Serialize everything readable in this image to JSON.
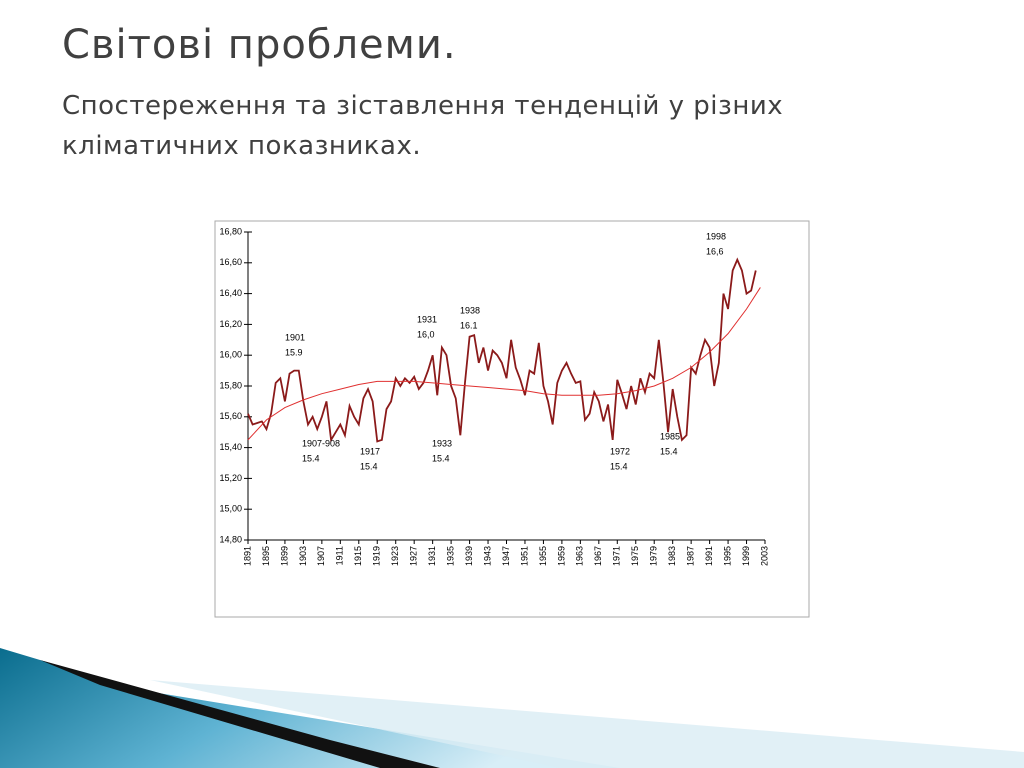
{
  "slide": {
    "title": "Світові проблеми.",
    "subtitle": "Спостереження та зіставлення тенденцій у різних кліматичних показниках."
  },
  "chart_data": {
    "type": "line",
    "x": [
      1891,
      1892,
      1893,
      1894,
      1895,
      1896,
      1897,
      1898,
      1899,
      1900,
      1901,
      1902,
      1903,
      1904,
      1905,
      1906,
      1907,
      1908,
      1909,
      1910,
      1911,
      1912,
      1913,
      1914,
      1915,
      1916,
      1917,
      1918,
      1919,
      1920,
      1921,
      1922,
      1923,
      1924,
      1925,
      1926,
      1927,
      1928,
      1929,
      1930,
      1931,
      1932,
      1933,
      1934,
      1935,
      1936,
      1937,
      1938,
      1939,
      1940,
      1941,
      1942,
      1943,
      1944,
      1945,
      1946,
      1947,
      1948,
      1949,
      1950,
      1951,
      1952,
      1953,
      1954,
      1955,
      1956,
      1957,
      1958,
      1959,
      1960,
      1961,
      1962,
      1963,
      1964,
      1965,
      1966,
      1967,
      1968,
      1969,
      1970,
      1971,
      1972,
      1973,
      1974,
      1975,
      1976,
      1977,
      1978,
      1979,
      1980,
      1981,
      1982,
      1983,
      1984,
      1985,
      1986,
      1987,
      1988,
      1989,
      1990,
      1991,
      1992,
      1993,
      1994,
      1995,
      1996,
      1997,
      1998,
      1999,
      2000,
      2001
    ],
    "series": [
      {
        "color": "#8b1a1a",
        "values": [
          15.62,
          15.55,
          15.56,
          15.57,
          15.52,
          15.62,
          15.82,
          15.85,
          15.7,
          15.88,
          15.9,
          15.9,
          15.7,
          15.55,
          15.6,
          15.52,
          15.6,
          15.7,
          15.45,
          15.5,
          15.55,
          15.48,
          15.67,
          15.6,
          15.55,
          15.72,
          15.78,
          15.7,
          15.44,
          15.45,
          15.65,
          15.7,
          15.85,
          15.8,
          15.85,
          15.82,
          15.86,
          15.78,
          15.82,
          15.9,
          16.0,
          15.74,
          16.05,
          16.0,
          15.8,
          15.72,
          15.48,
          15.82,
          16.12,
          16.13,
          15.95,
          16.05,
          15.9,
          16.03,
          16.0,
          15.95,
          15.85,
          16.1,
          15.92,
          15.84,
          15.74,
          15.9,
          15.88,
          16.08,
          15.8,
          15.7,
          15.55,
          15.82,
          15.9,
          15.95,
          15.88,
          15.82,
          15.83,
          15.58,
          15.62,
          15.76,
          15.7,
          15.57,
          15.68,
          15.45,
          15.84,
          15.75,
          15.65,
          15.8,
          15.68,
          15.85,
          15.76,
          15.88,
          15.85,
          16.1,
          15.82,
          15.5,
          15.78,
          15.6,
          15.45,
          15.48,
          15.92,
          15.88,
          16.0,
          16.1,
          16.05,
          15.8,
          15.95,
          16.4,
          16.3,
          16.55,
          16.62,
          16.55,
          16.4,
          16.42,
          16.55
        ]
      },
      {
        "color": "#e03030",
        "x": [
          1891,
          1895,
          1899,
          1903,
          1907,
          1911,
          1915,
          1919,
          1923,
          1927,
          1931,
          1935,
          1939,
          1943,
          1947,
          1951,
          1955,
          1959,
          1963,
          1967,
          1971,
          1975,
          1979,
          1983,
          1987,
          1991,
          1995,
          1999,
          2002
        ],
        "values": [
          15.45,
          15.58,
          15.66,
          15.71,
          15.75,
          15.78,
          15.81,
          15.83,
          15.83,
          15.83,
          15.82,
          15.81,
          15.8,
          15.79,
          15.78,
          15.77,
          15.75,
          15.74,
          15.74,
          15.74,
          15.75,
          15.77,
          15.8,
          15.85,
          15.92,
          16.02,
          16.14,
          16.3,
          16.44
        ]
      }
    ],
    "xlim": [
      1891,
      2003
    ],
    "xticks": [
      1891,
      1895,
      1899,
      1903,
      1907,
      1911,
      1915,
      1919,
      1923,
      1927,
      1931,
      1935,
      1939,
      1943,
      1947,
      1951,
      1955,
      1959,
      1963,
      1967,
      1971,
      1975,
      1979,
      1983,
      1987,
      1991,
      1995,
      1999,
      2003
    ],
    "ylim": [
      14.8,
      16.8
    ],
    "yticks": [
      {
        "value": 14.8,
        "label": "14,80"
      },
      {
        "value": 15.0,
        "label": "15,00"
      },
      {
        "value": 15.2,
        "label": "15,20"
      },
      {
        "value": 15.4,
        "label": "15,40"
      },
      {
        "value": 15.6,
        "label": "15,60"
      },
      {
        "value": 15.8,
        "label": "15,80"
      },
      {
        "value": 16.0,
        "label": "16,00"
      },
      {
        "value": 16.2,
        "label": "16,20"
      },
      {
        "value": 16.4,
        "label": "16,40"
      },
      {
        "value": 16.6,
        "label": "16,60"
      },
      {
        "value": 16.8,
        "label": "16,80"
      }
    ],
    "annotations": [
      [
        "1901",
        "15.9"
      ],
      [
        "1907-908",
        "15.4"
      ],
      [
        "1917",
        "15.4"
      ],
      [
        "1931",
        "16,0"
      ],
      [
        "1938",
        "16.1"
      ],
      [
        "1933",
        "15.4"
      ],
      [
        "1972",
        "15.4"
      ],
      [
        "1985",
        "15.4"
      ],
      [
        "1998",
        "16,6"
      ]
    ]
  }
}
